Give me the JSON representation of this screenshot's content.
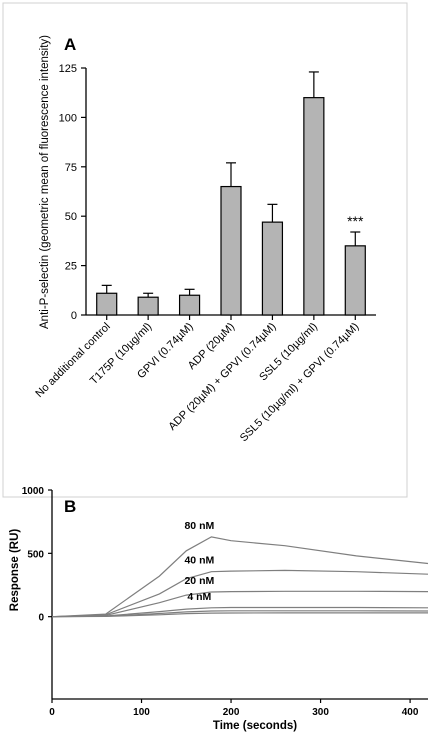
{
  "panels": {
    "a_label": "A",
    "b_label": "B"
  },
  "colors": {
    "bar_fill": "#b4b4b4",
    "stroke": "#000000",
    "curve": "#7f7f7f",
    "panel_border": "#d0d0d0"
  },
  "chart_data": [
    {
      "type": "bar",
      "panel": "A",
      "ylabel": "Anti-P-selectin (geometric mean of fluorescence intensity)",
      "ylim": [
        0,
        125
      ],
      "yticks": [
        "0",
        "25",
        "50",
        "75",
        "100",
        "125"
      ],
      "ytick_values": [
        0,
        25,
        50,
        75,
        100,
        125
      ],
      "categories": [
        "No additional control",
        "T175P (10µg/ml)",
        "GPVI (0.74µM)",
        "ADP (20µM)",
        "ADP (20µM) + GPVI (0.74µM)",
        "SSL5 (10µg/ml)",
        "SSL5 (10µg/ml) + GPVI (0.74µM)"
      ],
      "values": [
        11,
        9,
        10,
        65,
        47,
        110,
        35
      ],
      "errors": [
        4,
        2,
        3,
        12,
        9,
        13,
        7
      ],
      "annotations": [
        {
          "category_index": 6,
          "text": "***"
        }
      ],
      "grid": false
    },
    {
      "type": "line",
      "panel": "B",
      "xlabel": "Time (seconds)",
      "ylabel": "Response (RU)",
      "xlim": [
        0,
        420
      ],
      "ylim": [
        -650,
        1000
      ],
      "xticks": [
        "0",
        "100",
        "200",
        "300",
        "400"
      ],
      "xtick_values": [
        0,
        100,
        200,
        300,
        400
      ],
      "yticks": [
        "0",
        "500",
        "1000"
      ],
      "ytick_values": [
        0,
        500,
        1000
      ],
      "series": [
        {
          "name": "80 nM",
          "x": [
            0,
            60,
            120,
            150,
            178,
            200,
            260,
            340,
            420
          ],
          "y": [
            0,
            20,
            320,
            520,
            630,
            600,
            560,
            480,
            420
          ]
        },
        {
          "name": "40 nM",
          "x": [
            0,
            60,
            120,
            150,
            178,
            200,
            260,
            340,
            420
          ],
          "y": [
            0,
            15,
            180,
            300,
            355,
            360,
            365,
            355,
            335
          ]
        },
        {
          "name": "20 nM",
          "x": [
            0,
            60,
            120,
            150,
            178,
            200,
            260,
            340,
            420
          ],
          "y": [
            0,
            10,
            110,
            170,
            195,
            198,
            200,
            200,
            198
          ]
        },
        {
          "name": "4 nM",
          "x": [
            0,
            60,
            120,
            150,
            178,
            200,
            260,
            340,
            420
          ],
          "y": [
            0,
            5,
            40,
            60,
            70,
            72,
            72,
            72,
            70
          ]
        },
        {
          "x": [
            0,
            60,
            120,
            150,
            178,
            200,
            260,
            340,
            420
          ],
          "y": [
            0,
            3,
            25,
            38,
            45,
            46,
            46,
            46,
            45
          ]
        },
        {
          "x": [
            0,
            60,
            120,
            150,
            178,
            200,
            260,
            340,
            420
          ],
          "y": [
            0,
            2,
            15,
            24,
            28,
            29,
            30,
            30,
            30
          ]
        }
      ],
      "grid": false
    }
  ]
}
